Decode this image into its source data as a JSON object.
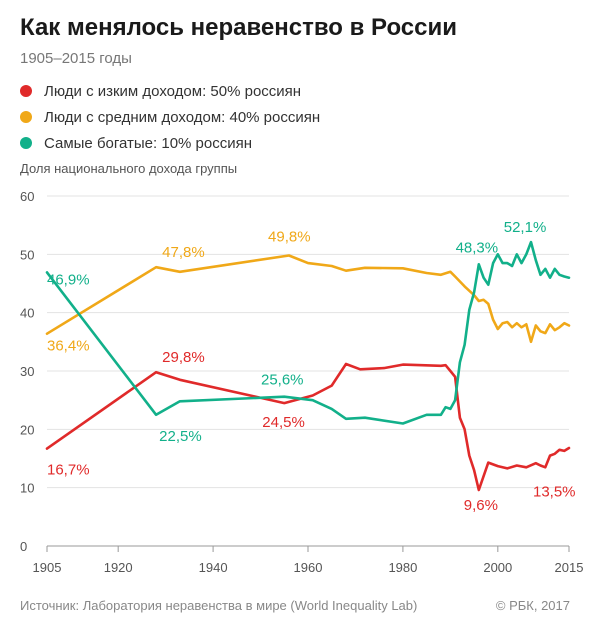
{
  "title": "Как менялось неравенство в России",
  "subtitle": "1905–2015 годы",
  "legend": [
    {
      "label": "Люди с изким доходом: 50% россиян",
      "color": "#e02a2a"
    },
    {
      "label": "Люди с средним доходом: 40% россиян",
      "color": "#f0a818"
    },
    {
      "label": "Самые богатые: 10% россиян",
      "color": "#12b08a"
    }
  ],
  "footer": {
    "source": "Источник: Лаборатория неравенства в мире (World Inequality Lab)",
    "copyright": "© РБК, 2017"
  },
  "chart_data": {
    "type": "line",
    "ylabel": "Доля национального дохода группы",
    "xlim": [
      1905,
      2015
    ],
    "ylim": [
      0,
      60
    ],
    "xticks": [
      1905,
      1920,
      1940,
      1960,
      1980,
      2000,
      2015
    ],
    "yticks": [
      0,
      10,
      20,
      30,
      40,
      50,
      60
    ],
    "grid": "horizontal",
    "series": [
      {
        "name": "Люди с изким доходом: 50% россиян",
        "color": "#e02a2a",
        "points": [
          [
            1905,
            16.7
          ],
          [
            1928,
            29.8
          ],
          [
            1933,
            28.5
          ],
          [
            1955,
            24.5
          ],
          [
            1961,
            25.8
          ],
          [
            1965,
            27.5
          ],
          [
            1968,
            31.2
          ],
          [
            1971,
            30.3
          ],
          [
            1976,
            30.5
          ],
          [
            1980,
            31.1
          ],
          [
            1988,
            30.9
          ],
          [
            1989,
            31.0
          ],
          [
            1990,
            30.0
          ],
          [
            1991,
            29.0
          ],
          [
            1992,
            22.0
          ],
          [
            1993,
            20.0
          ],
          [
            1994,
            15.5
          ],
          [
            1995,
            13.0
          ],
          [
            1996,
            9.6
          ],
          [
            1998,
            14.3
          ],
          [
            2000,
            13.7
          ],
          [
            2002,
            13.3
          ],
          [
            2004,
            13.8
          ],
          [
            2006,
            13.5
          ],
          [
            2008,
            14.2
          ],
          [
            2009,
            13.8
          ],
          [
            2010,
            13.5
          ],
          [
            2011,
            15.5
          ],
          [
            2012,
            15.8
          ],
          [
            2013,
            16.5
          ],
          [
            2014,
            16.3
          ],
          [
            2015,
            16.8
          ]
        ]
      },
      {
        "name": "Люди с средним доходом: 40% россиян",
        "color": "#f0a818",
        "points": [
          [
            1905,
            36.4
          ],
          [
            1928,
            47.8
          ],
          [
            1933,
            47.0
          ],
          [
            1956,
            49.8
          ],
          [
            1960,
            48.5
          ],
          [
            1965,
            48.0
          ],
          [
            1968,
            47.2
          ],
          [
            1972,
            47.7
          ],
          [
            1980,
            47.6
          ],
          [
            1985,
            46.8
          ],
          [
            1988,
            46.5
          ],
          [
            1990,
            47.0
          ],
          [
            1991,
            46.2
          ],
          [
            1993,
            44.5
          ],
          [
            1995,
            43.0
          ],
          [
            1996,
            42.0
          ],
          [
            1997,
            42.2
          ],
          [
            1998,
            41.5
          ],
          [
            1999,
            38.8
          ],
          [
            2000,
            37.2
          ],
          [
            2001,
            38.2
          ],
          [
            2002,
            38.4
          ],
          [
            2003,
            37.5
          ],
          [
            2004,
            38.2
          ],
          [
            2005,
            37.5
          ],
          [
            2006,
            38.0
          ],
          [
            2007,
            35.0
          ],
          [
            2008,
            37.8
          ],
          [
            2009,
            36.8
          ],
          [
            2010,
            36.5
          ],
          [
            2011,
            38.0
          ],
          [
            2012,
            37.0
          ],
          [
            2013,
            37.5
          ],
          [
            2014,
            38.2
          ],
          [
            2015,
            37.8
          ]
        ]
      },
      {
        "name": "Самые богатые: 10% россиян",
        "color": "#12b08a",
        "points": [
          [
            1905,
            46.9
          ],
          [
            1928,
            22.5
          ],
          [
            1933,
            24.8
          ],
          [
            1955,
            25.6
          ],
          [
            1961,
            25.0
          ],
          [
            1965,
            23.5
          ],
          [
            1968,
            21.8
          ],
          [
            1972,
            22.0
          ],
          [
            1980,
            21.0
          ],
          [
            1985,
            22.5
          ],
          [
            1988,
            22.5
          ],
          [
            1989,
            23.8
          ],
          [
            1990,
            23.5
          ],
          [
            1991,
            25.0
          ],
          [
            1992,
            31.5
          ],
          [
            1993,
            34.5
          ],
          [
            1994,
            40.5
          ],
          [
            1995,
            43.5
          ],
          [
            1996,
            48.3
          ],
          [
            1997,
            46.0
          ],
          [
            1998,
            44.8
          ],
          [
            1999,
            48.5
          ],
          [
            2000,
            50.0
          ],
          [
            2001,
            48.5
          ],
          [
            2002,
            48.5
          ],
          [
            2003,
            48.0
          ],
          [
            2004,
            50.0
          ],
          [
            2005,
            48.5
          ],
          [
            2006,
            50.0
          ],
          [
            2007,
            52.1
          ],
          [
            2008,
            49.0
          ],
          [
            2009,
            46.5
          ],
          [
            2010,
            47.5
          ],
          [
            2011,
            46.0
          ],
          [
            2012,
            47.5
          ],
          [
            2013,
            46.5
          ],
          [
            2014,
            46.2
          ],
          [
            2015,
            46.0
          ]
        ]
      }
    ],
    "annotations": [
      {
        "text": "46,9%",
        "x": 1905,
        "y": 46.9,
        "color": "#12b08a"
      },
      {
        "text": "36,4%",
        "x": 1905,
        "y": 36.4,
        "color": "#f0a818"
      },
      {
        "text": "16,7%",
        "x": 1905,
        "y": 16.7,
        "color": "#e02a2a"
      },
      {
        "text": "47,8%",
        "x": 1928,
        "y": 47.8,
        "color": "#f0a818"
      },
      {
        "text": "29,8%",
        "x": 1928,
        "y": 29.8,
        "color": "#e02a2a"
      },
      {
        "text": "22,5%",
        "x": 1928,
        "y": 22.5,
        "color": "#12b08a"
      },
      {
        "text": "49,8%",
        "x": 1956,
        "y": 49.8,
        "color": "#f0a818"
      },
      {
        "text": "25,6%",
        "x": 1955,
        "y": 25.6,
        "color": "#12b08a"
      },
      {
        "text": "24,5%",
        "x": 1955,
        "y": 24.5,
        "color": "#e02a2a"
      },
      {
        "text": "48,3%",
        "x": 1996,
        "y": 48.3,
        "color": "#12b08a"
      },
      {
        "text": "9,6%",
        "x": 1996,
        "y": 9.6,
        "color": "#e02a2a"
      },
      {
        "text": "52,1%",
        "x": 2007,
        "y": 52.1,
        "color": "#12b08a"
      },
      {
        "text": "13,5%",
        "x": 2010,
        "y": 13.5,
        "color": "#e02a2a"
      }
    ]
  }
}
